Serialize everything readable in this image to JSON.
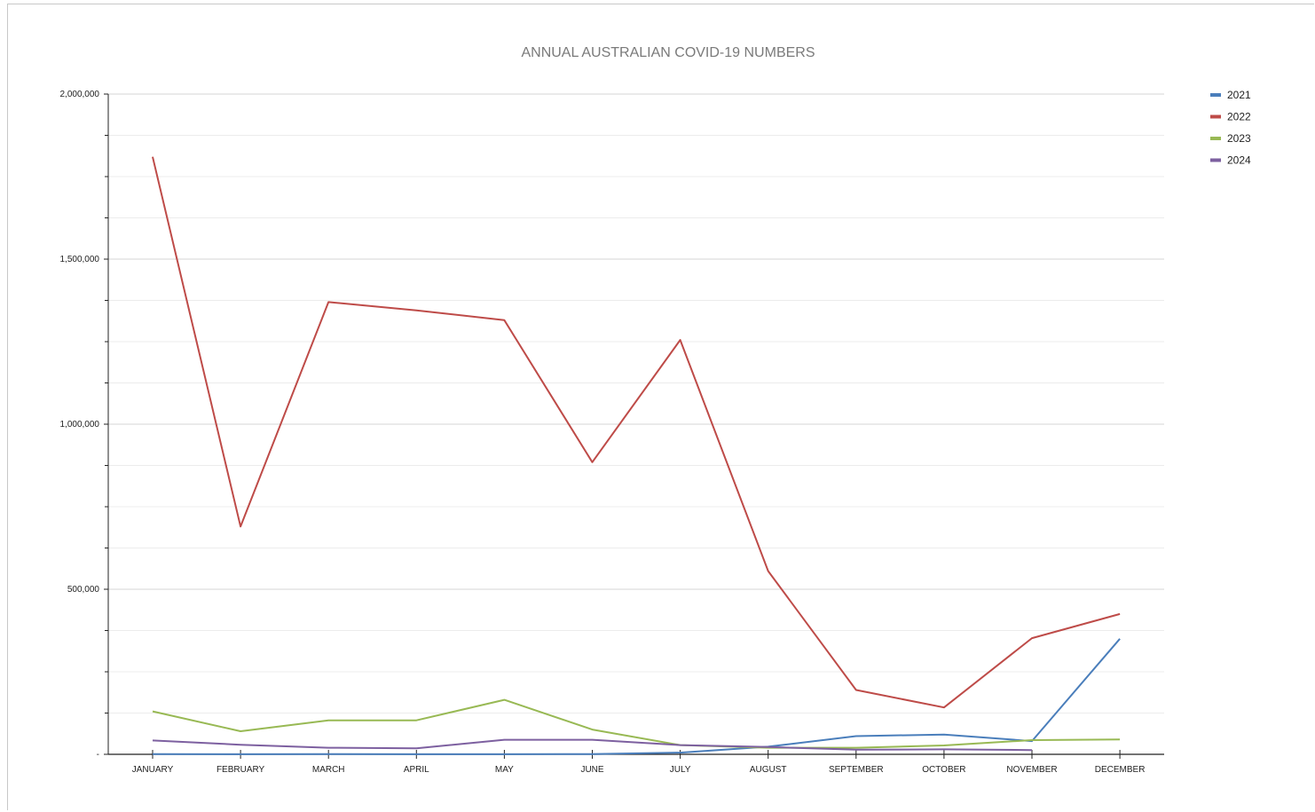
{
  "chart_data": {
    "type": "line",
    "title": "ANNUAL AUSTRALIAN COVID-19 NUMBERS",
    "xlabel": "",
    "ylabel": "",
    "categories": [
      "JANUARY",
      "FEBRUARY",
      "MARCH",
      "APRIL",
      "MAY",
      "JUNE",
      "JULY",
      "AUGUST",
      "SEPTEMBER",
      "OCTOBER",
      "NOVEMBER",
      "DECEMBER"
    ],
    "ylim": [
      0,
      2000000
    ],
    "y_ticks": [
      {
        "value": 0,
        "label": "-"
      },
      {
        "value": 500000,
        "label": "500,000"
      },
      {
        "value": 1000000,
        "label": "1,000,000"
      },
      {
        "value": 1500000,
        "label": "1,500,000"
      },
      {
        "value": 2000000,
        "label": "2,000,000"
      }
    ],
    "minor_gridlines_per_major": 3,
    "grid": true,
    "legend_position": "top-right",
    "series": [
      {
        "name": "2021",
        "color": "#4a7ebb",
        "values": [
          800,
          400,
          500,
          300,
          400,
          700,
          5000,
          23000,
          55000,
          60000,
          40000,
          350000
        ]
      },
      {
        "name": "2022",
        "color": "#be4b48",
        "values": [
          1810000,
          690000,
          1370000,
          1345000,
          1315000,
          885000,
          1255000,
          555000,
          195000,
          142000,
          352000,
          425000
        ]
      },
      {
        "name": "2023",
        "color": "#98b954",
        "values": [
          130000,
          70000,
          103000,
          103000,
          165000,
          75000,
          28000,
          20000,
          20000,
          27000,
          43000,
          45000
        ]
      },
      {
        "name": "2024",
        "color": "#7d60a0",
        "values": [
          42000,
          29000,
          20000,
          18000,
          44000,
          44000,
          28000,
          22000,
          14000,
          15000,
          13000,
          null
        ]
      }
    ]
  }
}
